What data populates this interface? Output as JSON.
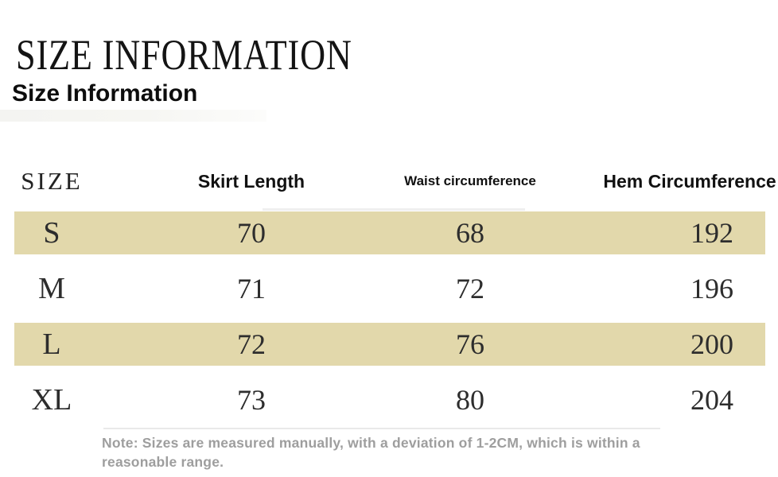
{
  "header": {
    "title": "SIZE INFORMATION",
    "subtitle": "Size Information"
  },
  "table": {
    "columns": [
      "SIZE",
      "Skirt Length",
      "Waist circumference",
      "Hem Circumference"
    ],
    "rows": [
      {
        "size": "S",
        "skirt_length": "70",
        "waist": "68",
        "hem": "192",
        "highlighted": true
      },
      {
        "size": "M",
        "skirt_length": "71",
        "waist": "72",
        "hem": "196",
        "highlighted": false
      },
      {
        "size": "L",
        "skirt_length": "72",
        "waist": "76",
        "hem": "200",
        "highlighted": true
      },
      {
        "size": "XL",
        "skirt_length": "73",
        "waist": "80",
        "hem": "204",
        "highlighted": false
      }
    ]
  },
  "note": {
    "text": "Note: Sizes are measured manually, with a deviation of 1-2CM, which is within a reasonable range."
  },
  "colors": {
    "page_bg": "#ffffff",
    "highlight_row_bg": "#e2d8ab",
    "title_text": "#141414",
    "table_text": "#2d2d2d",
    "note_text": "#9e9e9e"
  }
}
